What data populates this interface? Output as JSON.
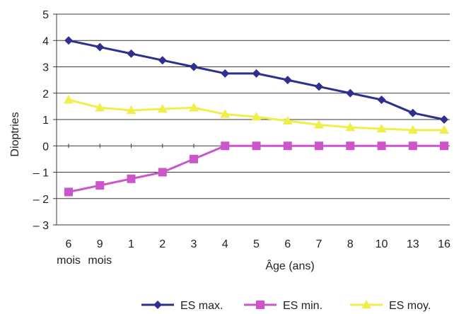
{
  "chart_data": {
    "type": "line",
    "categories": [
      "6",
      "9",
      "1",
      "2",
      "3",
      "4",
      "5",
      "6",
      "7",
      "8",
      "10",
      "13",
      "16"
    ],
    "category_sublabels": [
      "mois",
      "mois",
      "",
      "",
      "",
      "",
      "",
      "",
      "",
      "",
      "",
      "",
      ""
    ],
    "xlabel": "Âge (ans)",
    "ylabel": "Dioptries",
    "ylim": [
      -3,
      5
    ],
    "yticks": [
      "5",
      "4",
      "3",
      "2",
      "1",
      "0",
      "– 1",
      "– 2",
      "– 3"
    ],
    "ytick_values": [
      5,
      4,
      3,
      2,
      1,
      0,
      -1,
      -2,
      -3
    ],
    "grid": "horizontal",
    "legend_position": "bottom-right",
    "series": [
      {
        "name": "ES max.",
        "color": "#2e2f8f",
        "marker": "diamond",
        "values": [
          4.0,
          3.75,
          3.5,
          3.25,
          3.0,
          2.75,
          2.75,
          2.5,
          2.25,
          2.0,
          1.75,
          1.25,
          1.0
        ]
      },
      {
        "name": "ES min.",
        "color": "#cc55cc",
        "marker": "square",
        "values": [
          -1.75,
          -1.5,
          -1.25,
          -1.0,
          -0.5,
          0,
          0,
          0,
          0,
          0,
          0,
          0,
          0
        ]
      },
      {
        "name": "ES moy.",
        "color": "#f0ee4a",
        "marker": "triangle",
        "values": [
          1.75,
          1.45,
          1.35,
          1.4,
          1.45,
          1.2,
          1.1,
          0.95,
          0.8,
          0.7,
          0.65,
          0.6,
          0.6
        ]
      }
    ]
  }
}
